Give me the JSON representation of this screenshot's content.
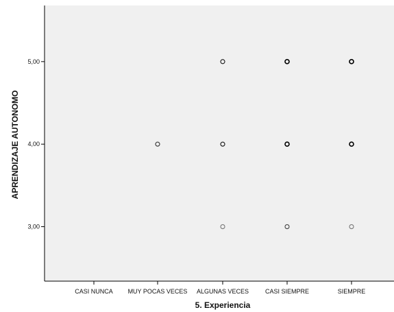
{
  "chart_data": {
    "type": "scatter",
    "xlabel": "5. Experiencia",
    "ylabel": "APRENDIZAJE  AUTONOMO",
    "categories": [
      "CASI NUNCA",
      "MUY POCAS VECES",
      "ALGUNAS VECES",
      "CASI SIEMPRE",
      "SIEMPRE"
    ],
    "yticks": [
      "3,00",
      "4,00",
      "5,00"
    ],
    "ytick_values": [
      3,
      4,
      5
    ],
    "ylim": [
      2.34,
      5.68
    ],
    "grid": false,
    "legend": "none",
    "colors": {
      "background": "#f0f0f0",
      "marker": "#000000",
      "axis": "#000000"
    },
    "points": [
      {
        "x": "MUY POCAS VECES",
        "y": 4,
        "shade": "#333333"
      },
      {
        "x": "ALGUNAS VECES",
        "y": 5,
        "shade": "#111111"
      },
      {
        "x": "ALGUNAS VECES",
        "y": 4,
        "shade": "#111111"
      },
      {
        "x": "ALGUNAS VECES",
        "y": 3,
        "shade": "#777777"
      },
      {
        "x": "CASI SIEMPRE",
        "y": 5,
        "shade": "#000000"
      },
      {
        "x": "CASI SIEMPRE",
        "y": 4,
        "shade": "#000000"
      },
      {
        "x": "CASI SIEMPRE",
        "y": 3,
        "shade": "#444444"
      },
      {
        "x": "SIEMPRE",
        "y": 5,
        "shade": "#000000"
      },
      {
        "x": "SIEMPRE",
        "y": 4,
        "shade": "#000000"
      },
      {
        "x": "SIEMPRE",
        "y": 3,
        "shade": "#777777"
      }
    ]
  }
}
